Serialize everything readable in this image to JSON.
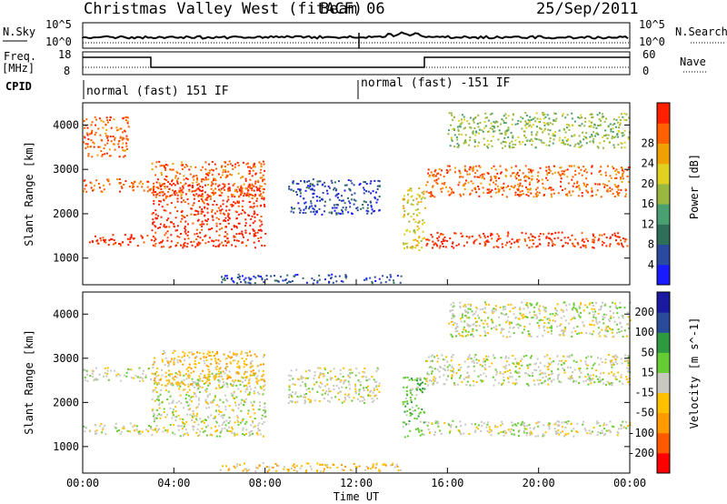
{
  "header": {
    "station": "Christmas Valley West (fitACF)",
    "beam": "Beam 06",
    "date": "25/Sep/2011"
  },
  "noise_panel": {
    "left_label": "N.Sky",
    "left_ticks": [
      "10^5",
      "10^0"
    ],
    "right_ticks": [
      "10^5",
      "10^0"
    ],
    "right_label": "N.Search"
  },
  "freq_panel": {
    "left_label_1": "Freq.",
    "left_label_2": "[MHz]",
    "left_ticks": [
      "18",
      "8"
    ],
    "right_ticks": [
      "60",
      "0"
    ],
    "right_label": "Nave"
  },
  "cpid": {
    "label": "CPID",
    "modes": [
      {
        "text": "normal (fast) 151 IF",
        "start_hour": 0
      },
      {
        "text": "normal (fast) -151 IF",
        "start_hour": 12
      }
    ]
  },
  "colors": {
    "power": [
      "#1a1aff",
      "#2a4aa0",
      "#2f6f5a",
      "#4aa070",
      "#9ab840",
      "#e0d020",
      "#f0a000",
      "#ff6000",
      "#ff2000"
    ],
    "velocity": [
      "#ff0000",
      "#ff5a00",
      "#ff9a00",
      "#ffc000",
      "#c8c8c0",
      "#66cc33",
      "#2e9a40",
      "#2a4a9a",
      "#1a1aa0"
    ]
  },
  "chart_data": [
    {
      "type": "heatmap",
      "panel": "power",
      "xlabel": "",
      "ylabel": "Slant Range [km]",
      "ylim": [
        400,
        4500
      ],
      "xlim_hours": [
        0,
        24
      ],
      "yticks": [
        "1000",
        "2000",
        "3000",
        "4000"
      ],
      "colorbar": {
        "label": "Power [dB]",
        "ticks": [
          "4",
          "8",
          "12",
          "16",
          "20",
          "24",
          "28"
        ]
      },
      "scatter_bands": [
        {
          "from_hour": 0,
          "to_hour": 3,
          "range_start": 1300,
          "range_end": 1550,
          "level": 8
        },
        {
          "from_hour": 3,
          "to_hour": 8,
          "range_start": 1250,
          "range_end": 2700,
          "level": 8
        },
        {
          "from_hour": 0,
          "to_hour": 3,
          "range_start": 2500,
          "range_end": 2800,
          "level": 7
        },
        {
          "from_hour": 3,
          "to_hour": 8,
          "range_start": 2400,
          "range_end": 3200,
          "level": 7
        },
        {
          "from_hour": 0,
          "to_hour": 2,
          "range_start": 3300,
          "range_end": 4200,
          "level": 7
        },
        {
          "from_hour": 9,
          "to_hour": 13,
          "range_start": 2000,
          "range_end": 2800,
          "level": 1
        },
        {
          "from_hour": 6,
          "to_hour": 14,
          "range_start": 450,
          "range_end": 650,
          "level": 1
        },
        {
          "from_hour": 14,
          "to_hour": 15,
          "range_start": 1200,
          "range_end": 2600,
          "level": 5
        },
        {
          "from_hour": 15,
          "to_hour": 24,
          "range_start": 1250,
          "range_end": 1600,
          "level": 8
        },
        {
          "from_hour": 15,
          "to_hour": 24,
          "range_start": 2400,
          "range_end": 3100,
          "level": 7
        },
        {
          "from_hour": 16,
          "to_hour": 24,
          "range_start": 3500,
          "range_end": 4300,
          "level": 4
        }
      ]
    },
    {
      "type": "heatmap",
      "panel": "velocity",
      "xlabel": "Time UT",
      "ylabel": "Slant Range [km]",
      "ylim": [
        400,
        4500
      ],
      "xlim_hours": [
        0,
        24
      ],
      "yticks": [
        "1000",
        "2000",
        "3000",
        "4000"
      ],
      "xticks": [
        "00:00",
        "04:00",
        "08:00",
        "12:00",
        "16:00",
        "20:00",
        "00:00"
      ],
      "colorbar": {
        "label": "Velocity [m s^-1]",
        "ticks": [
          "200",
          "100",
          "50",
          "15",
          "-15",
          "-50",
          "-100",
          "-200"
        ]
      },
      "scatter_bands": [
        {
          "from_hour": 0,
          "to_hour": 3,
          "range_start": 1300,
          "range_end": 1550,
          "level": 4
        },
        {
          "from_hour": 3,
          "to_hour": 8,
          "range_start": 1250,
          "range_end": 2700,
          "level": 4
        },
        {
          "from_hour": 0,
          "to_hour": 3,
          "range_start": 2500,
          "range_end": 2800,
          "level": 4
        },
        {
          "from_hour": 3,
          "to_hour": 8,
          "range_start": 2400,
          "range_end": 3200,
          "level": 3
        },
        {
          "from_hour": 9,
          "to_hour": 13,
          "range_start": 2000,
          "range_end": 2800,
          "level": 4
        },
        {
          "from_hour": 6,
          "to_hour": 14,
          "range_start": 450,
          "range_end": 650,
          "level": 3
        },
        {
          "from_hour": 14,
          "to_hour": 15,
          "range_start": 1200,
          "range_end": 2600,
          "level": 5
        },
        {
          "from_hour": 15,
          "to_hour": 24,
          "range_start": 1250,
          "range_end": 1600,
          "level": 4
        },
        {
          "from_hour": 15,
          "to_hour": 24,
          "range_start": 2400,
          "range_end": 3100,
          "level": 4
        },
        {
          "from_hour": 16,
          "to_hour": 24,
          "range_start": 3500,
          "range_end": 4300,
          "level": 4
        }
      ]
    }
  ]
}
